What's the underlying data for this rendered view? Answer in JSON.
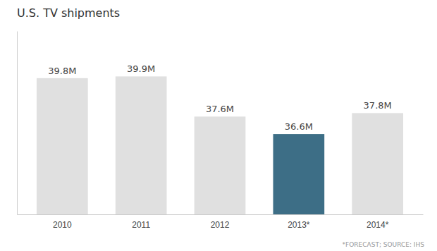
{
  "chart_data": {
    "type": "bar",
    "title": "U.S. TV shipments",
    "categories": [
      "2010",
      "2011",
      "2012",
      "2013*",
      "2014*"
    ],
    "values": [
      39.8,
      39.9,
      37.6,
      36.6,
      37.8
    ],
    "value_labels": [
      "39.8M",
      "39.9M",
      "37.6M",
      "36.6M",
      "37.8M"
    ],
    "data_labels": true,
    "colors": [
      "#e0e0e0",
      "#e0e0e0",
      "#e0e0e0",
      "#3d6e86",
      "#e0e0e0"
    ],
    "ylim": [
      32,
      42.5
    ],
    "tick_labels": "x",
    "grid": false,
    "annotations": [
      "*FORECAST; SOURCE: IHS"
    ]
  }
}
